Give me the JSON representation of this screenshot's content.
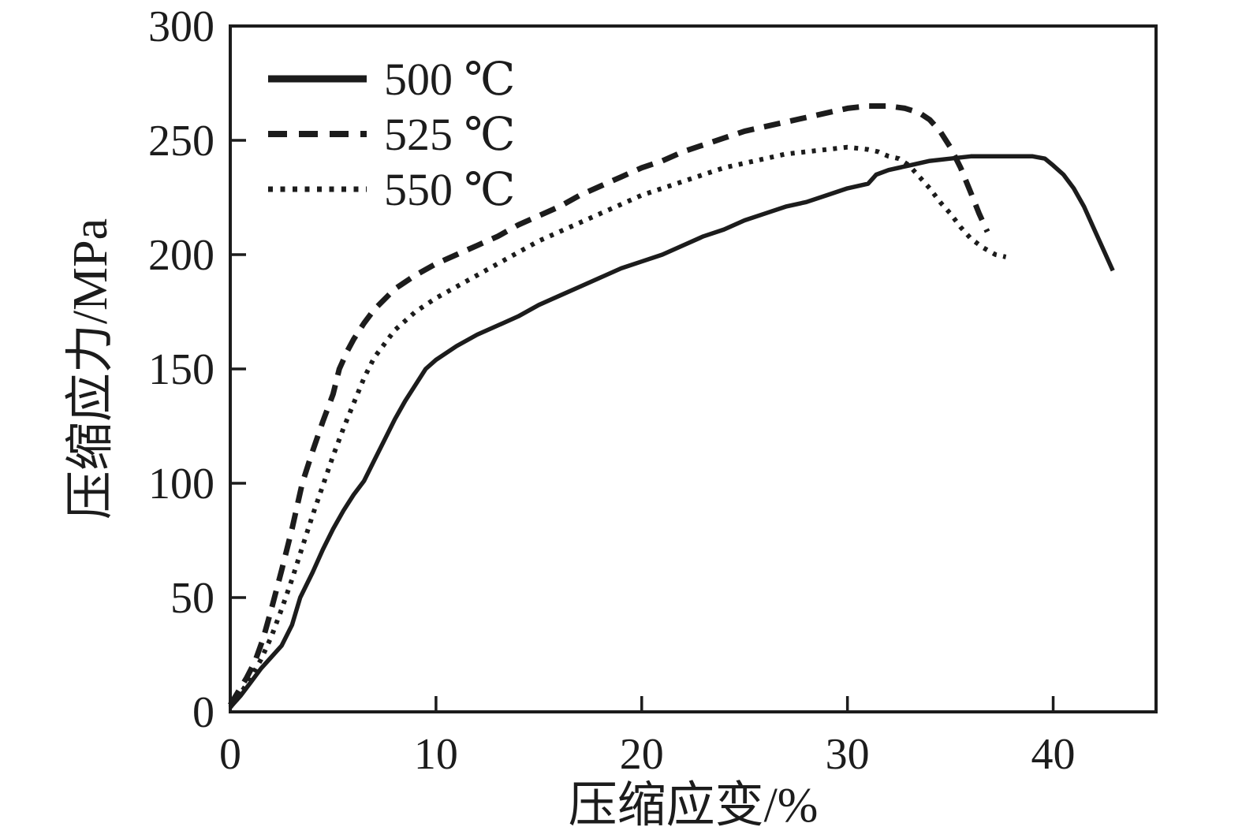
{
  "page": {
    "background": "#ffffff",
    "ink": "#1c1c1c"
  },
  "chart_data": {
    "type": "line",
    "title": "",
    "xlabel": "压缩应变/%",
    "ylabel": "压缩应力/MPa",
    "xlim": [
      0,
      45
    ],
    "ylim": [
      0,
      300
    ],
    "x_ticks": [
      0,
      10,
      20,
      30,
      40
    ],
    "y_ticks": [
      0,
      50,
      100,
      150,
      200,
      250,
      300
    ],
    "grid": false,
    "axis_color": "#1c1c1c",
    "legend": {
      "position": "top-left"
    },
    "series": [
      {
        "name": "500 ℃",
        "line_style": "solid",
        "color": "#1c1c1c",
        "points": [
          [
            0,
            2
          ],
          [
            0.5,
            7
          ],
          [
            1,
            13
          ],
          [
            1.5,
            19
          ],
          [
            2,
            24
          ],
          [
            2.5,
            29
          ],
          [
            3,
            38
          ],
          [
            3.4,
            50
          ],
          [
            4,
            61
          ],
          [
            4.5,
            71
          ],
          [
            5,
            80
          ],
          [
            5.5,
            88
          ],
          [
            6,
            95
          ],
          [
            6.5,
            101
          ],
          [
            7,
            110
          ],
          [
            7.5,
            119
          ],
          [
            8,
            128
          ],
          [
            8.5,
            136
          ],
          [
            9,
            143
          ],
          [
            9.5,
            150
          ],
          [
            10,
            154
          ],
          [
            11,
            160
          ],
          [
            12,
            165
          ],
          [
            13,
            169
          ],
          [
            14,
            173
          ],
          [
            15,
            178
          ],
          [
            16,
            182
          ],
          [
            17,
            186
          ],
          [
            18,
            190
          ],
          [
            19,
            194
          ],
          [
            20,
            197
          ],
          [
            21,
            200
          ],
          [
            22,
            204
          ],
          [
            23,
            208
          ],
          [
            24,
            211
          ],
          [
            25,
            215
          ],
          [
            26,
            218
          ],
          [
            27,
            221
          ],
          [
            28,
            223
          ],
          [
            29,
            226
          ],
          [
            30,
            229
          ],
          [
            31,
            231
          ],
          [
            31.4,
            235
          ],
          [
            32,
            237
          ],
          [
            33,
            239
          ],
          [
            34,
            241
          ],
          [
            35,
            242
          ],
          [
            36,
            243
          ],
          [
            37,
            243
          ],
          [
            38,
            243
          ],
          [
            39,
            243
          ],
          [
            39.6,
            242
          ],
          [
            40,
            239
          ],
          [
            40.5,
            235
          ],
          [
            41,
            229
          ],
          [
            41.5,
            221
          ],
          [
            42,
            211
          ],
          [
            42.5,
            201
          ],
          [
            42.9,
            193
          ]
        ]
      },
      {
        "name": "525 ℃",
        "line_style": "dashed",
        "color": "#1c1c1c",
        "points": [
          [
            0,
            3
          ],
          [
            0.4,
            9
          ],
          [
            0.8,
            15
          ],
          [
            1.2,
            22
          ],
          [
            1.6,
            32
          ],
          [
            2,
            45
          ],
          [
            2.5,
            62
          ],
          [
            3,
            80
          ],
          [
            3.5,
            100
          ],
          [
            4,
            114
          ],
          [
            4.5,
            127
          ],
          [
            5,
            139
          ],
          [
            5.3,
            150
          ],
          [
            5.7,
            158
          ],
          [
            6,
            163
          ],
          [
            6.5,
            170
          ],
          [
            7,
            176
          ],
          [
            8,
            185
          ],
          [
            9,
            191
          ],
          [
            10,
            196
          ],
          [
            11,
            200
          ],
          [
            12,
            204
          ],
          [
            13,
            208
          ],
          [
            14,
            213
          ],
          [
            15,
            217
          ],
          [
            16,
            221
          ],
          [
            17,
            226
          ],
          [
            18,
            230
          ],
          [
            19,
            234
          ],
          [
            20,
            238
          ],
          [
            21,
            241
          ],
          [
            22,
            245
          ],
          [
            23,
            248
          ],
          [
            24,
            251
          ],
          [
            25,
            254
          ],
          [
            26,
            256
          ],
          [
            27,
            258
          ],
          [
            28,
            260
          ],
          [
            29,
            262
          ],
          [
            30,
            264
          ],
          [
            31,
            265
          ],
          [
            32,
            265
          ],
          [
            32.8,
            264
          ],
          [
            33.5,
            262
          ],
          [
            34,
            259
          ],
          [
            34.5,
            254
          ],
          [
            35,
            247
          ],
          [
            35.5,
            238
          ],
          [
            36,
            227
          ],
          [
            36.4,
            218
          ],
          [
            36.8,
            210
          ]
        ]
      },
      {
        "name": "550 ℃",
        "line_style": "dotted",
        "color": "#1c1c1c",
        "points": [
          [
            0,
            2
          ],
          [
            0.5,
            8
          ],
          [
            1,
            15
          ],
          [
            1.5,
            23
          ],
          [
            2,
            33
          ],
          [
            2.5,
            45
          ],
          [
            3,
            58
          ],
          [
            3.5,
            72
          ],
          [
            4,
            86
          ],
          [
            4.5,
            99
          ],
          [
            5,
            112
          ],
          [
            5.5,
            124
          ],
          [
            6,
            135
          ],
          [
            6.5,
            146
          ],
          [
            7,
            155
          ],
          [
            7.5,
            161
          ],
          [
            8,
            167
          ],
          [
            9,
            175
          ],
          [
            10,
            181
          ],
          [
            11,
            186
          ],
          [
            12,
            191
          ],
          [
            13,
            196
          ],
          [
            14,
            201
          ],
          [
            15,
            206
          ],
          [
            16,
            210
          ],
          [
            17,
            214
          ],
          [
            18,
            218
          ],
          [
            19,
            222
          ],
          [
            20,
            226
          ],
          [
            21,
            229
          ],
          [
            22,
            232
          ],
          [
            23,
            235
          ],
          [
            24,
            238
          ],
          [
            25,
            240
          ],
          [
            26,
            242
          ],
          [
            27,
            244
          ],
          [
            28,
            245
          ],
          [
            29,
            246
          ],
          [
            30,
            247
          ],
          [
            31,
            246
          ],
          [
            31.5,
            245
          ],
          [
            32,
            243
          ],
          [
            32.5,
            242
          ],
          [
            33,
            239
          ],
          [
            33.5,
            234
          ],
          [
            34,
            229
          ],
          [
            34.5,
            223
          ],
          [
            35,
            218
          ],
          [
            35.5,
            212
          ],
          [
            36,
            207
          ],
          [
            36.6,
            203
          ],
          [
            37.2,
            200
          ],
          [
            37.7,
            199
          ]
        ]
      }
    ]
  }
}
